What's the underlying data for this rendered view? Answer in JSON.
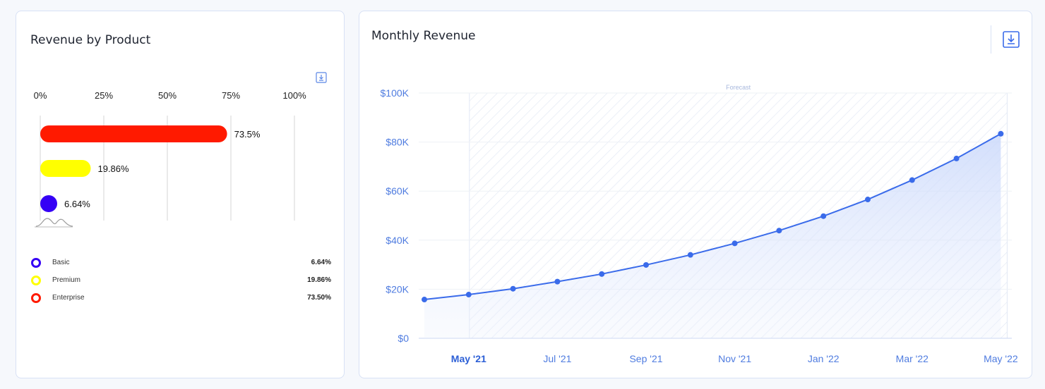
{
  "left_card": {
    "title": "Revenue by Product",
    "download_icon": "download-icon",
    "legend": [
      {
        "label": "Basic",
        "value": "6.64%",
        "color": "#3500f5"
      },
      {
        "label": "Premium",
        "value": "19.86%",
        "color": "#ffff00"
      },
      {
        "label": "Enterprise",
        "value": "73.50%",
        "color": "#ff1a00"
      }
    ]
  },
  "right_card": {
    "title": "Monthly Revenue",
    "download_icon": "download-icon"
  },
  "chart_data": [
    {
      "type": "bar",
      "orientation": "horizontal",
      "categories": [
        "Enterprise",
        "Premium",
        "Basic"
      ],
      "values": [
        73.5,
        19.86,
        6.64
      ],
      "value_labels": [
        "73.5%",
        "19.86%",
        "6.64%"
      ],
      "colors": [
        "#ff1a00",
        "#ffff00",
        "#3500f5"
      ],
      "xlim": [
        0,
        100
      ],
      "x_ticks": [
        "0%",
        "25%",
        "50%",
        "75%",
        "100%"
      ],
      "grid": true
    },
    {
      "type": "area",
      "x": [
        "Apr '21",
        "May '21",
        "Jun '21",
        "Jul '21",
        "Aug '21",
        "Sep '21",
        "Oct '21",
        "Nov '21",
        "Dec '21",
        "Jan '22",
        "Feb '22",
        "Mar '22",
        "Apr '22",
        "May '22"
      ],
      "values": [
        15800,
        17800,
        20200,
        23100,
        26200,
        29900,
        34000,
        38700,
        43900,
        49800,
        56600,
        64500,
        73300,
        83400
      ],
      "x_ticks": [
        "May '21",
        "Jul '21",
        "Sep '21",
        "Nov '21",
        "Jan '22",
        "Mar '22",
        "May '22"
      ],
      "y_ticks": [
        "$0",
        "$20K",
        "$40K",
        "$60K",
        "$80K",
        "$100K"
      ],
      "ylim": [
        0,
        100000
      ],
      "annotation": "Forecast",
      "forecast_range": [
        "May '21",
        "May '22"
      ],
      "color": "#3a6bea",
      "grid": true
    }
  ]
}
